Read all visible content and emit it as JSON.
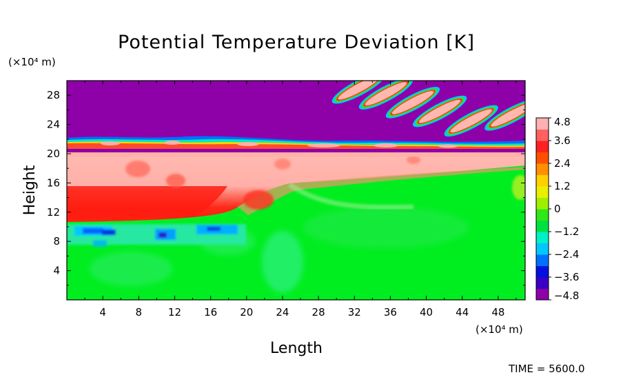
{
  "chart_data": {
    "type": "heatmap",
    "title": "Potential Temperature Deviation [K]",
    "xlabel": "Length",
    "ylabel": "Height",
    "x_unit": "(×10⁴ m)",
    "y_unit": "(×10⁴ m)",
    "xlim": [
      0,
      51
    ],
    "ylim": [
      0,
      30
    ],
    "x_ticks": [
      4,
      8,
      12,
      16,
      20,
      24,
      28,
      32,
      36,
      40,
      44,
      48
    ],
    "y_ticks": [
      4,
      8,
      12,
      16,
      20,
      24,
      28
    ],
    "colorbar": {
      "range": [
        -4.8,
        4.8
      ],
      "tick_values": [
        4.8,
        3.6,
        2.4,
        1.2,
        0,
        -1.2,
        -2.4,
        -3.6,
        -4.8
      ],
      "tick_labels": [
        "4.8",
        "3.6",
        "2.4",
        "1.2",
        "0",
        "−1.2",
        "−2.4",
        "−3.6",
        "−4.8"
      ],
      "colors": [
        "#8e00a8",
        "#3a00c4",
        "#0010e0",
        "#0070ff",
        "#00c8ff",
        "#00f0c8",
        "#00e040",
        "#30e818",
        "#9ef000",
        "#e8f000",
        "#ffd000",
        "#ff9000",
        "#ff5000",
        "#ff2020",
        "#ff6060",
        "#ffb0b0"
      ]
    },
    "regions": [
      {
        "name": "stratosphere-cold",
        "value": -4.8,
        "y_range": [
          21.5,
          30
        ]
      },
      {
        "name": "tropopause-warm-band",
        "value": 4.8,
        "y_range": [
          16,
          20
        ]
      },
      {
        "name": "upper-troposphere-warm",
        "value": 3.6,
        "x_range": [
          0,
          24
        ],
        "y_range": [
          12,
          16
        ]
      },
      {
        "name": "mid-troposphere-cold-patches",
        "value": -2.4,
        "x_range": [
          0,
          20
        ],
        "y_range": [
          8,
          10
        ]
      },
      {
        "name": "lower-troposphere",
        "value": 0,
        "y_range": [
          0,
          12
        ]
      }
    ],
    "waves": [
      {
        "x": 32.5,
        "y": 29.0
      },
      {
        "x": 35.5,
        "y": 28.2
      },
      {
        "x": 38.5,
        "y": 27.0
      },
      {
        "x": 41.5,
        "y": 25.8
      },
      {
        "x": 45.0,
        "y": 24.5
      },
      {
        "x": 49.5,
        "y": 25.3
      }
    ]
  },
  "time_label": "TIME = 5600.0"
}
